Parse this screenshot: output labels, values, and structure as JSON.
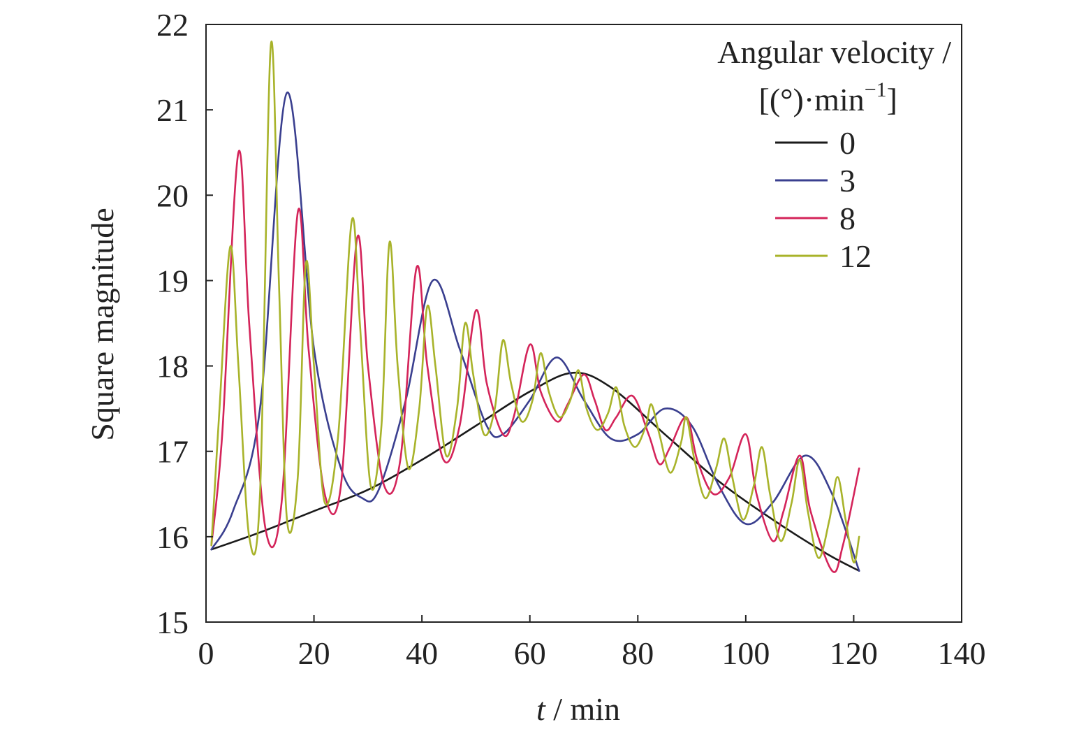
{
  "chart_data": {
    "type": "line",
    "xlabel_italic": "t",
    "xlabel_rest": " / min",
    "ylabel": "Square magnitude",
    "xlim": [
      0,
      140
    ],
    "ylim": [
      15,
      22
    ],
    "xticks": [
      0,
      20,
      40,
      60,
      80,
      100,
      120,
      140
    ],
    "yticks": [
      15,
      16,
      17,
      18,
      19,
      20,
      21,
      22
    ],
    "grid": false,
    "legend": {
      "placement": "top-right",
      "title_line1": "Angular velocity /",
      "title_line2_prefix": "[(°)·min",
      "title_line2_sup": "−1",
      "title_line2_suffix": "]"
    },
    "series": [
      {
        "name": "0",
        "color": "#1a1a1a",
        "points": [
          [
            1,
            15.85
          ],
          [
            10,
            16.05
          ],
          [
            20,
            16.3
          ],
          [
            30,
            16.55
          ],
          [
            40,
            16.9
          ],
          [
            50,
            17.3
          ],
          [
            60,
            17.7
          ],
          [
            68,
            17.92
          ],
          [
            75,
            17.75
          ],
          [
            85,
            17.2
          ],
          [
            95,
            16.65
          ],
          [
            105,
            16.2
          ],
          [
            115,
            15.8
          ],
          [
            121,
            15.6
          ]
        ]
      },
      {
        "name": "3",
        "color": "#3a3f8f",
        "points": [
          [
            1,
            15.85
          ],
          [
            5,
            16.3
          ],
          [
            10,
            17.5
          ],
          [
            15,
            21.2
          ],
          [
            20,
            18.2
          ],
          [
            25,
            16.8
          ],
          [
            29,
            16.45
          ],
          [
            32,
            16.55
          ],
          [
            37,
            17.6
          ],
          [
            42,
            19.0
          ],
          [
            47,
            18.2
          ],
          [
            52,
            17.3
          ],
          [
            55,
            17.2
          ],
          [
            60,
            17.6
          ],
          [
            65,
            18.1
          ],
          [
            70,
            17.6
          ],
          [
            75,
            17.15
          ],
          [
            80,
            17.2
          ],
          [
            85,
            17.5
          ],
          [
            90,
            17.3
          ],
          [
            95,
            16.6
          ],
          [
            100,
            16.15
          ],
          [
            105,
            16.4
          ],
          [
            111,
            16.95
          ],
          [
            116,
            16.5
          ],
          [
            121,
            15.6
          ]
        ]
      },
      {
        "name": "8",
        "color": "#d4245a",
        "points": [
          [
            1,
            15.9
          ],
          [
            3,
            17.2
          ],
          [
            6,
            20.5
          ],
          [
            8,
            18.5
          ],
          [
            11,
            16.1
          ],
          [
            14,
            16.4
          ],
          [
            17,
            19.8
          ],
          [
            19,
            18.2
          ],
          [
            22,
            16.5
          ],
          [
            25,
            16.6
          ],
          [
            28,
            19.5
          ],
          [
            30,
            18.0
          ],
          [
            33,
            16.6
          ],
          [
            36,
            16.9
          ],
          [
            39,
            19.15
          ],
          [
            41,
            18.0
          ],
          [
            44,
            16.9
          ],
          [
            47,
            17.3
          ],
          [
            50,
            18.65
          ],
          [
            52,
            17.8
          ],
          [
            55,
            17.2
          ],
          [
            57,
            17.4
          ],
          [
            60,
            18.25
          ],
          [
            62,
            17.7
          ],
          [
            65,
            17.35
          ],
          [
            67,
            17.55
          ],
          [
            70,
            17.9
          ],
          [
            72,
            17.6
          ],
          [
            74,
            17.25
          ],
          [
            76,
            17.4
          ],
          [
            79,
            17.65
          ],
          [
            82,
            17.2
          ],
          [
            84,
            16.85
          ],
          [
            86,
            17.05
          ],
          [
            89,
            17.4
          ],
          [
            91,
            16.9
          ],
          [
            94,
            16.5
          ],
          [
            97,
            16.7
          ],
          [
            100,
            17.2
          ],
          [
            102,
            16.5
          ],
          [
            105,
            15.95
          ],
          [
            107,
            16.3
          ],
          [
            110,
            16.95
          ],
          [
            112,
            16.3
          ],
          [
            116,
            15.6
          ],
          [
            118,
            15.9
          ],
          [
            121,
            16.8
          ]
        ]
      },
      {
        "name": "12",
        "color": "#a8b32a",
        "points": [
          [
            1,
            15.9
          ],
          [
            2.5,
            17.5
          ],
          [
            4.5,
            19.4
          ],
          [
            6,
            18.0
          ],
          [
            8,
            16.0
          ],
          [
            10,
            16.5
          ],
          [
            12,
            21.75
          ],
          [
            13.5,
            19.0
          ],
          [
            15,
            16.2
          ],
          [
            17,
            16.7
          ],
          [
            18.5,
            19.2
          ],
          [
            20,
            18.0
          ],
          [
            22,
            16.4
          ],
          [
            24.5,
            17.2
          ],
          [
            27,
            19.7
          ],
          [
            28.5,
            18.5
          ],
          [
            30.5,
            16.6
          ],
          [
            32.5,
            17.3
          ],
          [
            34,
            19.45
          ],
          [
            35.5,
            18.0
          ],
          [
            37.5,
            16.8
          ],
          [
            39.5,
            17.5
          ],
          [
            41,
            18.7
          ],
          [
            42.5,
            18.0
          ],
          [
            44.5,
            16.95
          ],
          [
            46.5,
            17.5
          ],
          [
            48,
            18.5
          ],
          [
            49.5,
            17.9
          ],
          [
            51.5,
            17.2
          ],
          [
            53.5,
            17.5
          ],
          [
            55,
            18.3
          ],
          [
            56.5,
            17.8
          ],
          [
            58.5,
            17.35
          ],
          [
            60.5,
            17.6
          ],
          [
            62,
            18.15
          ],
          [
            63.5,
            17.7
          ],
          [
            65.5,
            17.4
          ],
          [
            67.5,
            17.6
          ],
          [
            69,
            17.95
          ],
          [
            70.5,
            17.5
          ],
          [
            72.5,
            17.25
          ],
          [
            74.5,
            17.45
          ],
          [
            76,
            17.75
          ],
          [
            77.5,
            17.3
          ],
          [
            79.5,
            17.05
          ],
          [
            81.5,
            17.3
          ],
          [
            82.5,
            17.55
          ],
          [
            84,
            17.2
          ],
          [
            86,
            16.75
          ],
          [
            88,
            17.1
          ],
          [
            89,
            17.4
          ],
          [
            90.5,
            16.9
          ],
          [
            92.5,
            16.45
          ],
          [
            94.5,
            16.8
          ],
          [
            96,
            17.15
          ],
          [
            97.5,
            16.7
          ],
          [
            99.5,
            16.2
          ],
          [
            101.5,
            16.6
          ],
          [
            103,
            17.05
          ],
          [
            104.5,
            16.5
          ],
          [
            106.5,
            15.95
          ],
          [
            108.5,
            16.4
          ],
          [
            110,
            16.9
          ],
          [
            111.5,
            16.3
          ],
          [
            113.5,
            15.75
          ],
          [
            115.5,
            16.2
          ],
          [
            117,
            16.7
          ],
          [
            118.5,
            16.2
          ],
          [
            120,
            15.7
          ],
          [
            121,
            16.0
          ]
        ]
      }
    ]
  }
}
